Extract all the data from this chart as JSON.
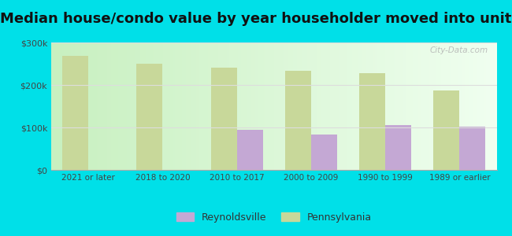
{
  "title": "Median house/condo value by year householder moved into unit",
  "categories": [
    "2021 or later",
    "2018 to 2020",
    "2010 to 2017",
    "2000 to 2009",
    "1990 to 1999",
    "1989 or earlier"
  ],
  "reynoldsville_values": [
    0,
    0,
    95000,
    83000,
    105000,
    101000
  ],
  "pennsylvania_values": [
    268000,
    250000,
    240000,
    234000,
    227000,
    187000
  ],
  "reynoldsville_color": "#c4a8d4",
  "pennsylvania_color": "#c8d89a",
  "background_color_left": "#d6f5d6",
  "background_color_right": "#f5fff5",
  "outer_background": "#00e0e8",
  "ylim": [
    0,
    300000
  ],
  "yticks": [
    0,
    100000,
    200000,
    300000
  ],
  "ytick_labels": [
    "$0",
    "$100k",
    "$200k",
    "$300k"
  ],
  "legend_reynoldsville": "Reynoldsville",
  "legend_pennsylvania": "Pennsylvania",
  "title_fontsize": 13,
  "bar_width": 0.35,
  "watermark": "City-Data.com"
}
